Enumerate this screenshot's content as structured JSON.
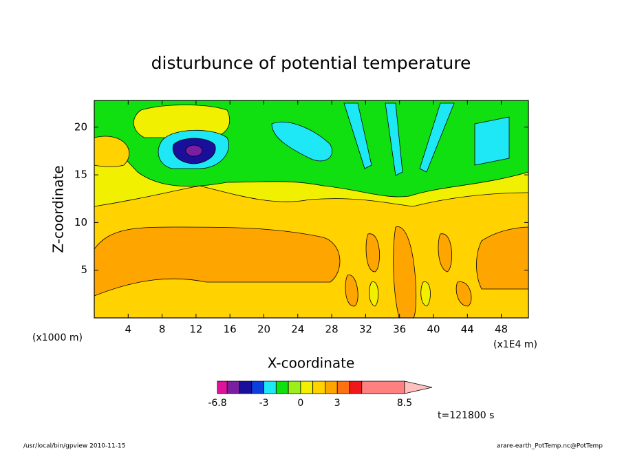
{
  "chart_data": {
    "type": "contour",
    "title": "disturbunce of potential temperature",
    "xlabel": "X-coordinate",
    "ylabel": "Z-coordinate",
    "x_unit": "(x1000 m)",
    "x_unit_right": "(x1E4 m)",
    "xlim": [
      0,
      51.2
    ],
    "xticks": [
      4,
      8,
      12,
      16,
      20,
      24,
      28,
      32,
      36,
      40,
      44,
      48
    ],
    "ylim": [
      0,
      22.8
    ],
    "yticks": [
      5,
      10,
      15,
      20
    ],
    "colorbar": {
      "levels": [
        -6.8,
        -6,
        -5,
        -4,
        -3,
        -2,
        -1,
        0,
        1,
        2,
        3,
        4,
        5,
        8.5
      ],
      "colors": [
        "#e0119c",
        "#7b1fa2",
        "#1a0f9a",
        "#0c3fe0",
        "#1ee8f5",
        "#10e010",
        "#9cf01a",
        "#f0f000",
        "#ffd200",
        "#ffa500",
        "#ff7010",
        "#f01818",
        "#ff8080"
      ],
      "extend_color": "#ffc0c0",
      "ticks": [
        -6.8,
        -3,
        0,
        3,
        8.5
      ]
    },
    "time_label": "t=121800 s",
    "footer_left": "/usr/local/bin/gpview  2010-11-15",
    "footer_right": "arare-earth_PotTemp.nc@PotTemp"
  }
}
